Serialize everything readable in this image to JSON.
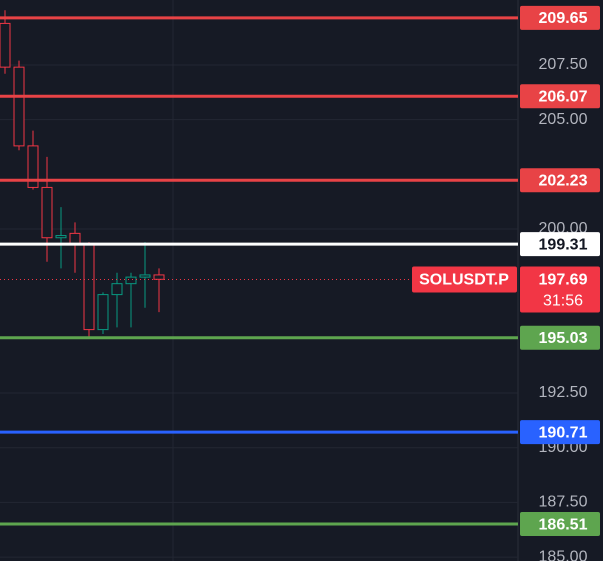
{
  "chart_data": {
    "type": "candlestick",
    "symbol": "SOLUSDT.P",
    "countdown": "31:56",
    "ylim": [
      184.82,
      210.47
    ],
    "yticks": [
      {
        "value": 185,
        "label": "185.00"
      },
      {
        "value": 187.5,
        "label": "187.50"
      },
      {
        "value": 190,
        "label": "190.00"
      },
      {
        "value": 192.5,
        "label": "192.50"
      },
      {
        "value": 200,
        "label": "200.00"
      },
      {
        "value": 205,
        "label": "205.00"
      },
      {
        "value": 207.5,
        "label": "207.50"
      }
    ],
    "up_color": "#089981",
    "down_color": "#f23645",
    "candles": [
      {
        "open": 209.4,
        "high": 210.0,
        "low": 207.1,
        "close": 207.4
      },
      {
        "open": 207.4,
        "high": 207.7,
        "low": 203.6,
        "close": 203.8
      },
      {
        "open": 203.8,
        "high": 204.5,
        "low": 201.8,
        "close": 201.9
      },
      {
        "open": 201.9,
        "high": 203.3,
        "low": 198.5,
        "close": 199.6
      },
      {
        "open": 199.6,
        "high": 201.0,
        "low": 198.2,
        "close": 199.7
      },
      {
        "open": 199.8,
        "high": 200.3,
        "low": 198.0,
        "close": 199.3
      },
      {
        "open": 199.3,
        "high": 199.4,
        "low": 195.0,
        "close": 195.4
      },
      {
        "open": 195.4,
        "high": 197.1,
        "low": 195.2,
        "close": 197.0
      },
      {
        "open": 197.0,
        "high": 198.0,
        "low": 195.5,
        "close": 197.5
      },
      {
        "open": 197.5,
        "high": 198.0,
        "low": 195.5,
        "close": 197.8
      },
      {
        "open": 197.8,
        "high": 199.4,
        "low": 196.4,
        "close": 197.9
      },
      {
        "open": 197.9,
        "high": 198.2,
        "low": 196.2,
        "close": 197.7
      }
    ],
    "levels": [
      {
        "value": 209.65,
        "color": "#e84346"
      },
      {
        "value": 206.07,
        "color": "#e84346"
      },
      {
        "value": 202.23,
        "color": "#e84346"
      },
      {
        "value": 199.31,
        "color": "#ffffff"
      },
      {
        "value": 195.03,
        "color": "#5ea54f"
      },
      {
        "value": 190.71,
        "color": "#2962ff"
      },
      {
        "value": 186.51,
        "color": "#5ea54f"
      }
    ],
    "last_price": 197.69
  }
}
